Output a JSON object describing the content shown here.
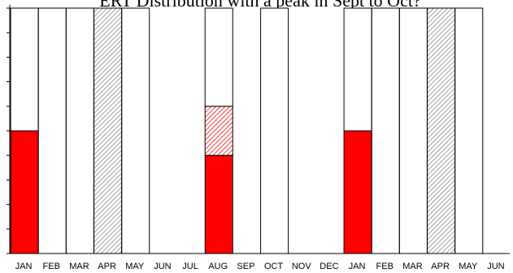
{
  "title": "ERT Distribution with a peak in Sept to Oct?",
  "chart_data": {
    "type": "bar",
    "categories": [
      "JAN",
      "FEB",
      "MAR",
      "APR",
      "MAY",
      "JUN",
      "JUL",
      "AUG",
      "SEP",
      "OCT",
      "NOV",
      "DEC",
      "JAN",
      "FEB",
      "MAR",
      "APR",
      "MAY",
      "JUN"
    ],
    "ylim": [
      0,
      10
    ],
    "grid": false,
    "legend": "none",
    "series": [
      {
        "color": "#ff0000",
        "pattern": "solid",
        "values": [
          5,
          0,
          0,
          0,
          0,
          0,
          0,
          4,
          0,
          0,
          0,
          0,
          5,
          0,
          0,
          0,
          0,
          0
        ]
      },
      {
        "color": "#ff0000",
        "pattern": "hatched",
        "values": [
          0,
          0,
          0,
          0,
          0,
          0,
          0,
          2,
          0,
          0,
          0,
          0,
          0,
          0,
          0,
          0,
          0,
          0
        ]
      },
      {
        "color": "#808080",
        "pattern": "hatched",
        "values": [
          0,
          0,
          0,
          10,
          0,
          0,
          0,
          0,
          0,
          0,
          0,
          0,
          0,
          0,
          0,
          10,
          0,
          0
        ]
      },
      {
        "color": "#ffffff",
        "pattern": "outline",
        "values": [
          5,
          10,
          10,
          0,
          10,
          0,
          0,
          4,
          0,
          10,
          0,
          0,
          5,
          10,
          10,
          0,
          10,
          0
        ]
      }
    ]
  }
}
